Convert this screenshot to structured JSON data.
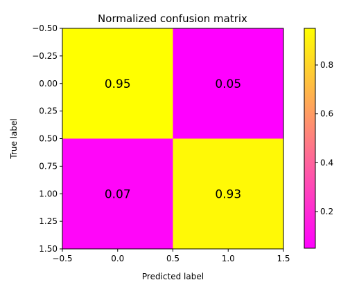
{
  "chart_data": {
    "type": "heatmap",
    "title": "Normalized confusion matrix",
    "xlabel": "Predicted label",
    "ylabel": "True label",
    "x_ticks": [
      -0.5,
      0.0,
      0.5,
      1.0,
      1.5
    ],
    "x_tick_labels": [
      "−0.5",
      "0.0",
      "0.5",
      "1.0",
      "1.5"
    ],
    "y_ticks": [
      -0.5,
      -0.25,
      0.0,
      0.25,
      0.5,
      0.75,
      1.0,
      1.25,
      1.5
    ],
    "y_tick_labels": [
      "−0.50",
      "−0.25",
      "0.00",
      "0.25",
      "0.50",
      "0.75",
      "1.00",
      "1.25",
      "1.50"
    ],
    "xlim": [
      -0.5,
      1.5
    ],
    "ylim": [
      1.5,
      -0.5
    ],
    "matrix": [
      [
        0.95,
        0.05
      ],
      [
        0.07,
        0.93
      ]
    ],
    "cell_labels": [
      [
        "0.95",
        "0.05"
      ],
      [
        "0.07",
        "0.93"
      ]
    ],
    "colormap": "spring",
    "color_range": [
      0.05,
      0.95
    ],
    "colorbar_ticks": [
      0.2,
      0.4,
      0.6,
      0.8
    ],
    "colorbar_tick_labels": [
      "0.2",
      "0.4",
      "0.6",
      "0.8"
    ],
    "colors": {
      "low": "#ff00ff",
      "high": "#ffff00"
    }
  }
}
